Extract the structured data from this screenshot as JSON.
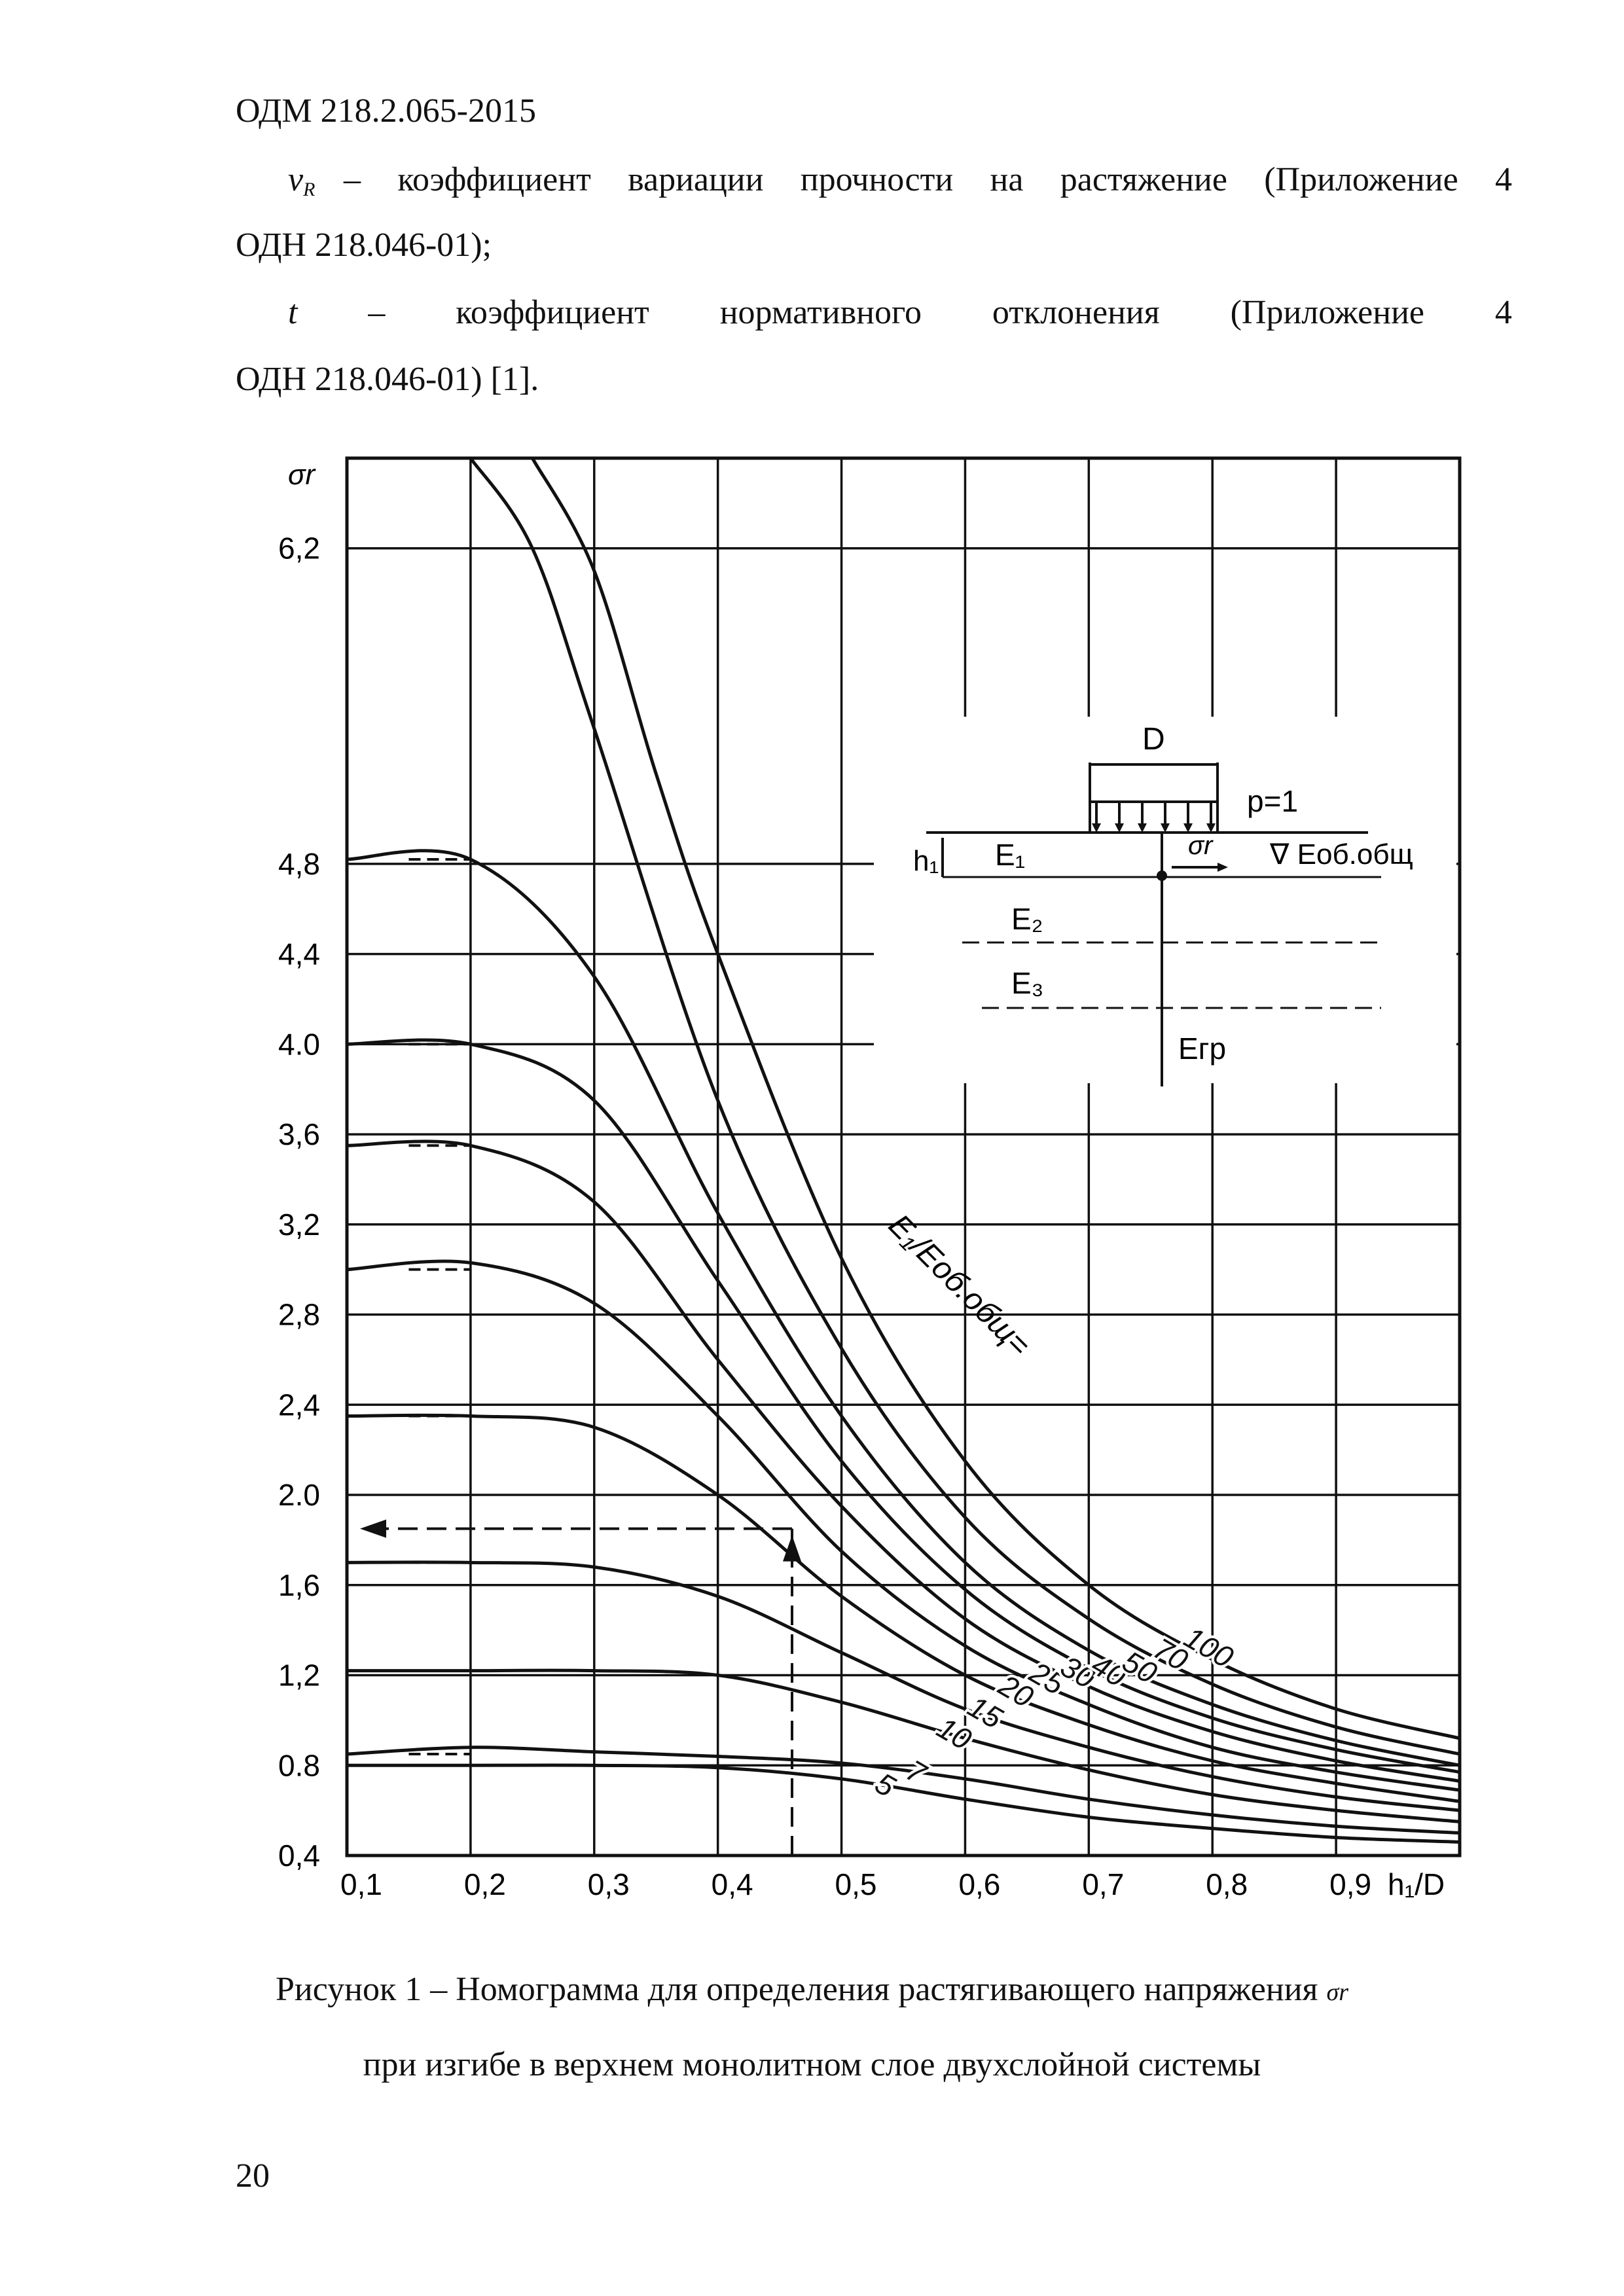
{
  "header": {
    "doc_code": "ОДМ  218.2.065-2015"
  },
  "text": {
    "vr_symbol": "ν",
    "vr_sub": "R",
    "vr_line1": "– коэффициент вариации прочности на растяжение (Приложение 4",
    "vr_line2": "ОДН 218.046-01);",
    "t_symbol": "t",
    "t_words": [
      "–",
      "коэффициент",
      "нормативного",
      "отклонения",
      "(Приложение",
      "4"
    ],
    "t_line2": "ОДН 218.046-01) [1]."
  },
  "chart_data": {
    "type": "line",
    "title": "",
    "xlabel": "h₁/D",
    "ylabel": "σr",
    "xlim": [
      0.1,
      1.0
    ],
    "ylim": [
      0.4,
      6.6
    ],
    "x_ticks": [
      "0,1",
      "0,2",
      "0,3",
      "0,4",
      "0,5",
      "0,6",
      "0,7",
      "0,8",
      "0,9"
    ],
    "y_ticks": [
      {
        "v": 0.4,
        "label": "0,4"
      },
      {
        "v": 0.8,
        "label": "0.8"
      },
      {
        "v": 1.2,
        "label": "1,2"
      },
      {
        "v": 1.6,
        "label": "1,6"
      },
      {
        "v": 2.0,
        "label": "2.0"
      },
      {
        "v": 2.4,
        "label": "2,4"
      },
      {
        "v": 2.8,
        "label": "2,8"
      },
      {
        "v": 3.2,
        "label": "3,2"
      },
      {
        "v": 3.6,
        "label": "3,6"
      },
      {
        "v": 4.0,
        "label": "4.0"
      },
      {
        "v": 4.4,
        "label": "4,4"
      },
      {
        "v": 4.8,
        "label": "4,8"
      },
      {
        "v": 6.2,
        "label": "6,2"
      }
    ],
    "grid": true,
    "curve_family_label": "E₁/Eоб.общ=",
    "series": [
      {
        "name": "5",
        "x": [
          0.1,
          0.2,
          0.3,
          0.4,
          0.5,
          0.6,
          0.7,
          0.8,
          0.9,
          1.0
        ],
        "y": [
          0.8,
          0.8,
          0.8,
          0.79,
          0.74,
          0.65,
          0.57,
          0.52,
          0.48,
          0.46
        ]
      },
      {
        "name": "7",
        "x": [
          0.1,
          0.2,
          0.3,
          0.4,
          0.5,
          0.6,
          0.7,
          0.8,
          0.9,
          1.0
        ],
        "y": [
          0.85,
          0.88,
          0.86,
          0.84,
          0.81,
          0.74,
          0.65,
          0.58,
          0.53,
          0.5
        ]
      },
      {
        "name": "10",
        "x": [
          0.1,
          0.2,
          0.3,
          0.4,
          0.5,
          0.6,
          0.7,
          0.8,
          0.9,
          1.0
        ],
        "y": [
          1.22,
          1.22,
          1.22,
          1.2,
          1.08,
          0.92,
          0.78,
          0.67,
          0.6,
          0.55
        ]
      },
      {
        "name": "15",
        "x": [
          0.1,
          0.2,
          0.3,
          0.4,
          0.5,
          0.6,
          0.7,
          0.8,
          0.9,
          1.0
        ],
        "y": [
          1.7,
          1.7,
          1.68,
          1.55,
          1.3,
          1.05,
          0.88,
          0.75,
          0.66,
          0.6
        ]
      },
      {
        "name": "20",
        "x": [
          0.1,
          0.2,
          0.3,
          0.4,
          0.5,
          0.6,
          0.7,
          0.8,
          0.9,
          1.0
        ],
        "y": [
          2.35,
          2.35,
          2.3,
          2.0,
          1.55,
          1.2,
          0.98,
          0.82,
          0.72,
          0.64
        ]
      },
      {
        "name": "25",
        "x": [
          0.1,
          0.2,
          0.3,
          0.4,
          0.5,
          0.6,
          0.7,
          0.8,
          0.9,
          1.0
        ],
        "y": [
          3.0,
          3.03,
          2.85,
          2.35,
          1.75,
          1.33,
          1.07,
          0.88,
          0.77,
          0.69
        ]
      },
      {
        "name": "30",
        "x": [
          0.1,
          0.2,
          0.3,
          0.4,
          0.5,
          0.6,
          0.7,
          0.8,
          0.9,
          1.0
        ],
        "y": [
          3.55,
          3.55,
          3.3,
          2.6,
          1.95,
          1.45,
          1.15,
          0.95,
          0.82,
          0.73
        ]
      },
      {
        "name": "40",
        "x": [
          0.1,
          0.2,
          0.3,
          0.4,
          0.5,
          0.6,
          0.7,
          0.8,
          0.9,
          1.0
        ],
        "y": [
          4.0,
          4.0,
          3.75,
          2.95,
          2.15,
          1.58,
          1.23,
          1.01,
          0.87,
          0.77
        ]
      },
      {
        "name": "50",
        "x": [
          0.1,
          0.2,
          0.3,
          0.4,
          0.5,
          0.6,
          0.7,
          0.8,
          0.9,
          1.0
        ],
        "y": [
          4.82,
          4.82,
          4.3,
          3.25,
          2.35,
          1.7,
          1.31,
          1.07,
          0.91,
          0.8
        ]
      },
      {
        "name": "70",
        "x": [
          0.2,
          0.25,
          0.3,
          0.4,
          0.5,
          0.6,
          0.7,
          0.8,
          0.9,
          1.0
        ],
        "y": [
          6.6,
          6.2,
          5.4,
          3.75,
          2.65,
          1.9,
          1.45,
          1.16,
          0.97,
          0.85
        ]
      },
      {
        "name": "100",
        "x": [
          0.25,
          0.3,
          0.35,
          0.4,
          0.5,
          0.6,
          0.7,
          0.8,
          0.9,
          1.0
        ],
        "y": [
          6.6,
          6.1,
          5.2,
          4.4,
          3.05,
          2.15,
          1.6,
          1.27,
          1.05,
          0.92
        ]
      }
    ],
    "example_path": {
      "x": 0.46,
      "y": 1.85
    },
    "inset": {
      "d_label": "D",
      "p_label": "p=1",
      "h_label": "h₁",
      "sigma_label": "σr",
      "e_general": "Eоб.общ",
      "layers": [
        "E₁",
        "E₂",
        "E₃",
        "Eгр"
      ]
    }
  },
  "caption": {
    "line1": "Рисунок 1 – Номограмма для определения растягивающего напряжения",
    "line1_sym": "σr",
    "line2": "при изгибе в верхнем монолитном слое двухслойной системы"
  },
  "footer": {
    "page_number": "20"
  }
}
